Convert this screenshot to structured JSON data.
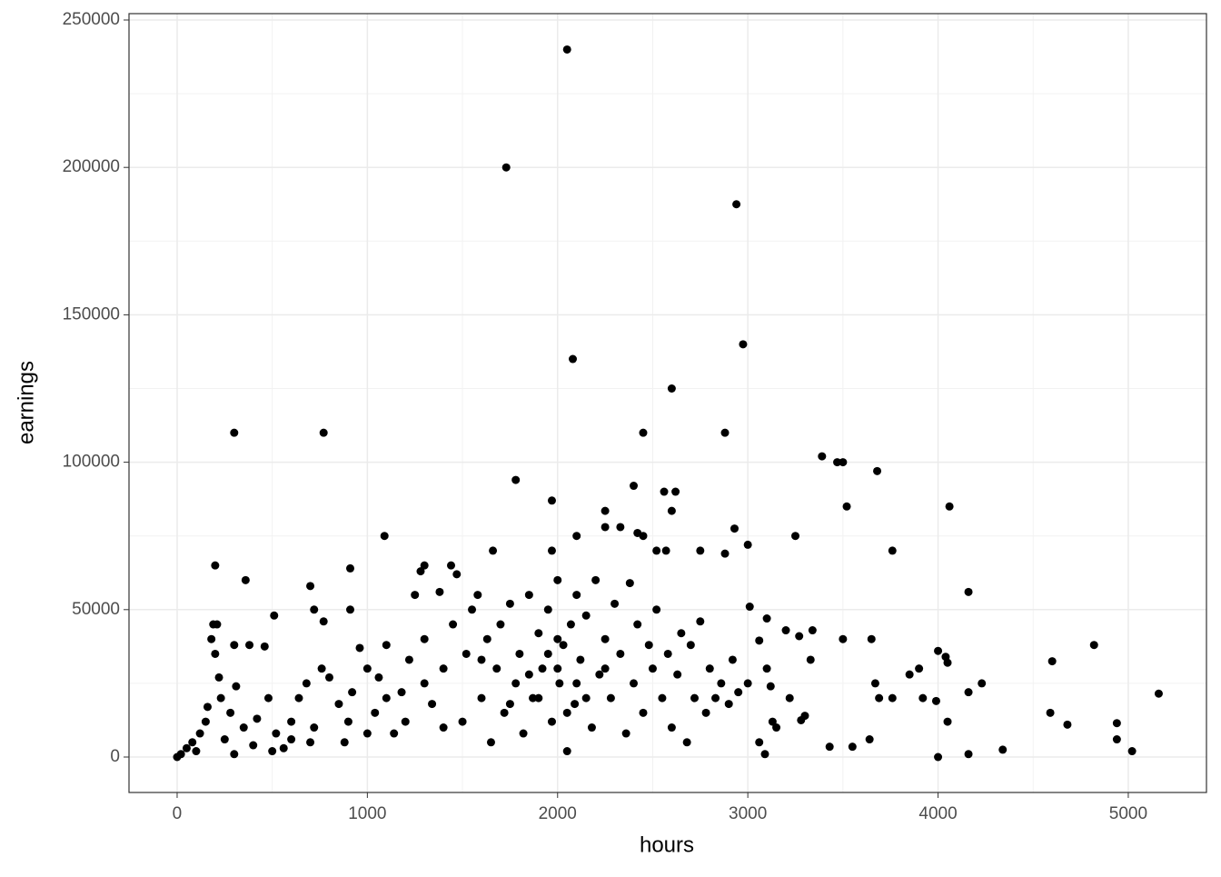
{
  "chart_data": {
    "type": "scatter",
    "xlabel": "hours",
    "ylabel": "earnings",
    "color": "#000000",
    "xlim": [
      -253,
      5411
    ],
    "ylim": [
      -12022,
      252158
    ],
    "xticks": [
      0,
      1000,
      2000,
      3000,
      4000,
      5000
    ],
    "yticks": [
      0,
      50000,
      100000,
      150000,
      200000,
      250000
    ],
    "x_minor_ticks": [
      500,
      1500,
      2500,
      3500,
      4500
    ],
    "y_minor_ticks": [
      25000,
      75000,
      125000,
      175000,
      225000
    ],
    "grid": true,
    "x": [
      2050,
      1730,
      2940,
      2975,
      2080,
      2600,
      300,
      770,
      2450,
      2880,
      3390,
      3470,
      3500,
      3680,
      1780,
      2400,
      1970,
      2560,
      2620,
      3520,
      4060,
      2250,
      2600,
      2930,
      2330,
      2250,
      1090,
      2100,
      3250,
      2420,
      2450,
      3000,
      1660,
      1970,
      2520,
      2570,
      2750,
      3760,
      200,
      1300,
      1440,
      2880,
      360,
      910,
      700,
      720,
      910,
      4160,
      510,
      770,
      4820,
      4600,
      5160,
      4230,
      4940,
      4940,
      5020,
      4680,
      4590,
      4340,
      4160,
      4000,
      4050,
      4160,
      4000,
      4040,
      4050,
      3900,
      3850,
      3920,
      3990,
      3760,
      3690,
      3650,
      3670,
      3640,
      3550,
      3430,
      3500,
      3330,
      3340,
      3270,
      3200,
      3100,
      3060,
      3010,
      3090,
      3060,
      3130,
      3150,
      3220,
      3300,
      3280,
      3000,
      3100,
      3120,
      0,
      20,
      50,
      80,
      100,
      120,
      150,
      160,
      180,
      190,
      210,
      200,
      220,
      230,
      250,
      280,
      300,
      310,
      350,
      380,
      400,
      420,
      460,
      480,
      520,
      560,
      600,
      640,
      680,
      720,
      760,
      800,
      850,
      880,
      920,
      960,
      1000,
      1040,
      1060,
      1100,
      1140,
      1180,
      1220,
      1250,
      1280,
      1300,
      1340,
      1380,
      1400,
      1450,
      1470,
      1500,
      1520,
      1550,
      1580,
      1600,
      1630,
      1650,
      1680,
      1700,
      1720,
      1750,
      1780,
      1800,
      1820,
      1850,
      1870,
      1900,
      1920,
      1950,
      1970,
      2000,
      2010,
      2030,
      2050,
      2070,
      2090,
      2100,
      2120,
      2150,
      2180,
      2200,
      2220,
      2250,
      2280,
      2300,
      2330,
      2360,
      2380,
      2400,
      2420,
      2450,
      2480,
      2500,
      2520,
      2550,
      2580,
      2600,
      2630,
      2650,
      2680,
      2700,
      2720,
      2750,
      2780,
      2800,
      2830,
      2860,
      2900,
      2920,
      2950,
      1900,
      2000,
      2100,
      1950,
      2050,
      2150,
      1850,
      2250,
      1750,
      2000,
      1600,
      1400,
      1200,
      900,
      700,
      500,
      300,
      600,
      1000,
      1300,
      1100
    ],
    "values": [
      240000,
      200000,
      187500,
      140000,
      135000,
      125000,
      110000,
      110000,
      110000,
      110000,
      102000,
      100000,
      100000,
      97000,
      94000,
      92000,
      87000,
      90000,
      90000,
      85000,
      85000,
      83500,
      83500,
      77500,
      78000,
      78000,
      75000,
      75000,
      75000,
      76000,
      75000,
      72000,
      70000,
      70000,
      70000,
      70000,
      70000,
      70000,
      65000,
      65000,
      65000,
      69000,
      60000,
      64000,
      58000,
      50000,
      50000,
      56000,
      48000,
      46000,
      38000,
      32500,
      21500,
      25000,
      11500,
      6000,
      2000,
      11000,
      15000,
      2500,
      1000,
      0,
      12000,
      22000,
      36000,
      34000,
      32000,
      30000,
      28000,
      20000,
      19000,
      20000,
      20000,
      40000,
      25000,
      6000,
      3500,
      3500,
      40000,
      33000,
      43000,
      41000,
      43000,
      47000,
      39500,
      51000,
      1000,
      5000,
      12000,
      10000,
      20000,
      14000,
      12500,
      25000,
      30000,
      24000,
      0,
      1000,
      3000,
      5000,
      2000,
      8000,
      12000,
      17000,
      40000,
      45000,
      45000,
      35000,
      27000,
      20000,
      6000,
      15000,
      38000,
      24000,
      10000,
      38000,
      4000,
      13000,
      37500,
      20000,
      8000,
      3000,
      12000,
      20000,
      25000,
      10000,
      30000,
      27000,
      18000,
      5000,
      22000,
      37000,
      30000,
      15000,
      27000,
      38000,
      8000,
      22000,
      33000,
      55000,
      63000,
      40000,
      18000,
      56000,
      30000,
      45000,
      62000,
      12000,
      35000,
      50000,
      55000,
      20000,
      40000,
      5000,
      30000,
      45000,
      15000,
      52000,
      25000,
      35000,
      8000,
      55000,
      20000,
      42000,
      30000,
      50000,
      12000,
      60000,
      25000,
      38000,
      2000,
      45000,
      18000,
      55000,
      33000,
      48000,
      10000,
      60000,
      28000,
      40000,
      20000,
      52000,
      35000,
      8000,
      59000,
      25000,
      45000,
      15000,
      38000,
      30000,
      50000,
      20000,
      35000,
      10000,
      28000,
      42000,
      5000,
      38000,
      20000,
      46000,
      15000,
      30000,
      20000,
      25000,
      18000,
      33000,
      22000,
      20000,
      30000,
      25000,
      35000,
      15000,
      20000,
      28000,
      30000,
      18000,
      40000,
      33000,
      10000,
      12000,
      12000,
      5000,
      2000,
      1000,
      6000,
      8000,
      25000,
      20000
    ]
  }
}
